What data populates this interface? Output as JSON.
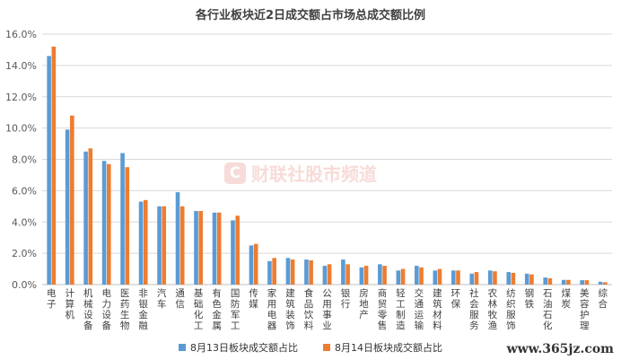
{
  "chart_data": {
    "type": "bar",
    "title": "各行业板块近2日成交额占市场总成交额比例",
    "categories": [
      "电子",
      "计算机",
      "机械设备",
      "电力设备",
      "医药生物",
      "非银金融",
      "汽车",
      "通信",
      "基础化工",
      "有色金属",
      "国防军工",
      "传媒",
      "家用电器",
      "建筑装饰",
      "食品饮料",
      "公用事业",
      "银行",
      "房地产",
      "商贸零售",
      "轻工制造",
      "交通运输",
      "建筑材料",
      "环保",
      "社会服务",
      "农林牧渔",
      "纺织服饰",
      "钢铁",
      "石油石化",
      "煤炭",
      "美容护理",
      "综合"
    ],
    "series": [
      {
        "name": "8月13日板块成交额占比",
        "color": "#5b9bd5",
        "values": [
          14.6,
          9.9,
          8.5,
          7.9,
          8.4,
          5.3,
          5.0,
          5.9,
          4.7,
          4.6,
          4.1,
          2.5,
          1.5,
          1.7,
          1.6,
          1.2,
          1.6,
          1.1,
          1.3,
          0.9,
          1.2,
          0.9,
          0.9,
          0.7,
          0.9,
          0.8,
          0.7,
          0.45,
          0.3,
          0.28,
          0.18
        ]
      },
      {
        "name": "8月14日板块成交额占比",
        "color": "#ed7d31",
        "values": [
          15.2,
          10.8,
          8.7,
          7.7,
          7.5,
          5.4,
          5.0,
          5.0,
          4.7,
          4.6,
          4.4,
          2.6,
          1.7,
          1.6,
          1.55,
          1.3,
          1.3,
          1.2,
          1.2,
          1.0,
          1.1,
          1.0,
          0.9,
          0.8,
          0.85,
          0.75,
          0.65,
          0.4,
          0.3,
          0.28,
          0.15
        ]
      }
    ],
    "yticks": [
      "0.0%",
      "2.0%",
      "4.0%",
      "6.0%",
      "8.0%",
      "10.0%",
      "12.0%",
      "14.0%",
      "16.0%"
    ],
    "ylim": [
      0,
      16
    ],
    "grid": true,
    "legend_position": "bottom"
  },
  "watermark": {
    "logo": "C",
    "text": "财联社股市频道"
  },
  "site_mark": "www.365jz.com"
}
